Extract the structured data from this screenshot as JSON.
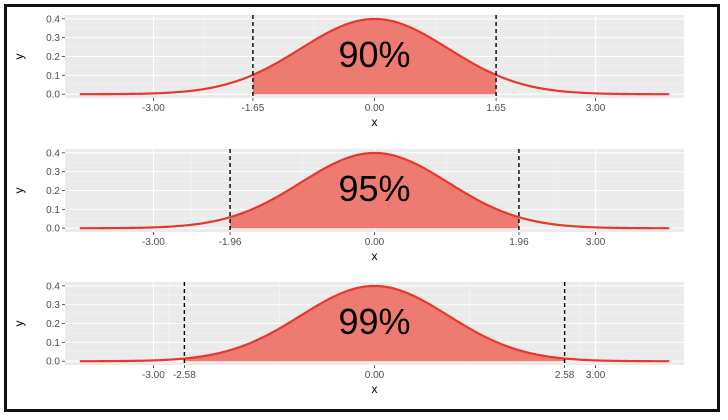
{
  "chart_data": [
    {
      "type": "area",
      "xlabel": "x",
      "ylabel": "y",
      "xlim": [
        -4.2,
        4.2
      ],
      "ylim": [
        -0.02,
        0.42
      ],
      "x_ticks": [
        "-3.00",
        "-1.65",
        "0.00",
        "1.65",
        "3.00"
      ],
      "x_tick_values": [
        -3.0,
        -1.65,
        0.0,
        1.65,
        3.0
      ],
      "y_ticks": [
        "0.0",
        "0.1",
        "0.2",
        "0.3",
        "0.4"
      ],
      "y_tick_values": [
        0.0,
        0.1,
        0.2,
        0.3,
        0.4
      ],
      "critical_values": [
        -1.65,
        1.65
      ],
      "shaded_area_label": "90%",
      "curve": "standard normal density",
      "grid": true
    },
    {
      "type": "area",
      "xlabel": "x",
      "ylabel": "y",
      "xlim": [
        -4.2,
        4.2
      ],
      "ylim": [
        -0.02,
        0.42
      ],
      "x_ticks": [
        "-3.00",
        "-1.96",
        "0.00",
        "1.96",
        "3.00"
      ],
      "x_tick_values": [
        -3.0,
        -1.96,
        0.0,
        1.96,
        3.0
      ],
      "y_ticks": [
        "0.0",
        "0.1",
        "0.2",
        "0.3",
        "0.4"
      ],
      "y_tick_values": [
        0.0,
        0.1,
        0.2,
        0.3,
        0.4
      ],
      "critical_values": [
        -1.96,
        1.96
      ],
      "shaded_area_label": "95%",
      "curve": "standard normal density",
      "grid": true
    },
    {
      "type": "area",
      "xlabel": "x",
      "ylabel": "y",
      "xlim": [
        -4.2,
        4.2
      ],
      "ylim": [
        -0.02,
        0.42
      ],
      "x_ticks": [
        "-3.00",
        "-2.58",
        "0.00",
        "2.58",
        "3.00"
      ],
      "x_tick_values": [
        -3.0,
        -2.58,
        0.0,
        2.58,
        3.0
      ],
      "y_ticks": [
        "0.0",
        "0.1",
        "0.2",
        "0.3",
        "0.4"
      ],
      "y_tick_values": [
        0.0,
        0.1,
        0.2,
        0.3,
        0.4
      ],
      "critical_values": [
        -2.58,
        2.58
      ],
      "shaded_area_label": "99%",
      "curve": "standard normal density",
      "grid": true
    }
  ],
  "colors": {
    "panel_background": "#ebebeb",
    "grid_major": "#ffffff",
    "curve": "#e8382c",
    "fill": "#ee7b72",
    "cutoff_line": "#000000"
  }
}
